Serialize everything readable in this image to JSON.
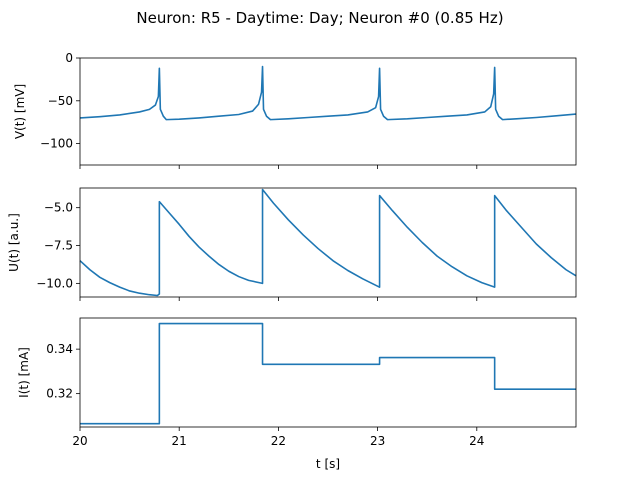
{
  "chart_data": [
    {
      "type": "line",
      "title": "Neuron: R5 - Daytime: Day; Neuron #0 (0.85 Hz)",
      "xlabel": "",
      "ylabel": "V(t) [mV]",
      "xlim": [
        20,
        25
      ],
      "ylim": [
        -125,
        0
      ],
      "yticks": [
        0,
        -50,
        -100
      ],
      "ytick_labels": [
        "0",
        "−50",
        "−100"
      ],
      "xticks": [
        20,
        21,
        22,
        23,
        24
      ],
      "xtick_labels": [],
      "line_color": "#1f77b4",
      "spike_times": [
        20.8,
        21.84,
        23.02,
        24.18
      ],
      "series": [
        {
          "x": [
            20.0,
            20.2,
            20.4,
            20.6,
            20.7,
            20.76,
            20.79,
            20.8,
            20.81,
            20.84,
            20.87,
            21.0,
            21.2,
            21.4,
            21.6,
            21.74,
            21.8,
            21.83,
            21.84,
            21.85,
            21.88,
            21.92,
            22.1,
            22.3,
            22.5,
            22.7,
            22.9,
            22.98,
            23.01,
            23.02,
            23.03,
            23.06,
            23.1,
            23.3,
            23.5,
            23.7,
            23.9,
            24.08,
            24.14,
            24.17,
            24.18,
            24.19,
            24.22,
            24.26,
            24.4,
            24.6,
            24.8,
            25.0
          ],
          "y": [
            -70,
            -68.5,
            -66.5,
            -63,
            -60,
            -55,
            -45,
            -12,
            -60,
            -68,
            -72,
            -71.5,
            -70,
            -68,
            -66,
            -62,
            -54,
            -40,
            -10,
            -60,
            -68,
            -72,
            -71,
            -69.5,
            -68,
            -66.5,
            -63,
            -58,
            -45,
            -12,
            -60,
            -68,
            -72,
            -71,
            -69.5,
            -68,
            -66.5,
            -63,
            -57,
            -42,
            -11,
            -60,
            -68,
            -72,
            -71,
            -69.5,
            -67.5,
            -65.5
          ]
        }
      ]
    },
    {
      "type": "line",
      "xlabel": "",
      "ylabel": "U(t) [a.u.]",
      "xlim": [
        20,
        25
      ],
      "ylim": [
        -10.9,
        -3.7
      ],
      "yticks": [
        -5,
        -7.5,
        -10
      ],
      "ytick_labels": [
        "−5.0",
        "−7.5",
        "−10.0"
      ],
      "xticks": [
        20,
        21,
        22,
        23,
        24
      ],
      "xtick_labels": [],
      "line_color": "#1f77b4",
      "series": [
        {
          "x": [
            20.0,
            20.1,
            20.2,
            20.3,
            20.4,
            20.5,
            20.6,
            20.7,
            20.78,
            20.8,
            20.8,
            20.9,
            21.0,
            21.1,
            21.2,
            21.3,
            21.4,
            21.5,
            21.6,
            21.7,
            21.84,
            21.84,
            21.95,
            22.1,
            22.25,
            22.4,
            22.55,
            22.7,
            22.85,
            23.02,
            23.02,
            23.15,
            23.3,
            23.45,
            23.6,
            23.75,
            23.9,
            24.05,
            24.18,
            24.18,
            24.3,
            24.45,
            24.6,
            24.75,
            24.9,
            25.0
          ],
          "y": [
            -8.5,
            -9.1,
            -9.6,
            -9.95,
            -10.25,
            -10.5,
            -10.65,
            -10.75,
            -10.8,
            -10.7,
            -4.6,
            -5.35,
            -6.1,
            -6.9,
            -7.6,
            -8.2,
            -8.75,
            -9.2,
            -9.55,
            -9.8,
            -10.0,
            -3.8,
            -4.7,
            -5.8,
            -6.8,
            -7.7,
            -8.5,
            -9.15,
            -9.7,
            -10.25,
            -4.2,
            -5.2,
            -6.3,
            -7.3,
            -8.2,
            -8.9,
            -9.5,
            -9.95,
            -10.25,
            -4.2,
            -5.2,
            -6.3,
            -7.4,
            -8.3,
            -9.1,
            -9.5
          ]
        }
      ]
    },
    {
      "type": "line",
      "xlabel": "t [s]",
      "ylabel": "I(t) [mA]",
      "xlim": [
        20,
        25
      ],
      "ylim": [
        0.305,
        0.354
      ],
      "yticks": [
        0.34,
        0.32
      ],
      "ytick_labels": [
        "0.34",
        "0.32"
      ],
      "xticks": [
        20,
        21,
        22,
        23,
        24
      ],
      "xtick_labels": [
        "20",
        "21",
        "22",
        "23",
        "24"
      ],
      "line_color": "#1f77b4",
      "series": [
        {
          "x": [
            20.0,
            20.8,
            20.8,
            21.84,
            21.84,
            23.02,
            23.02,
            24.18,
            24.18,
            25.0
          ],
          "y": [
            0.3065,
            0.3065,
            0.3515,
            0.3515,
            0.3332,
            0.3332,
            0.3362,
            0.3362,
            0.322,
            0.322
          ]
        }
      ]
    }
  ]
}
